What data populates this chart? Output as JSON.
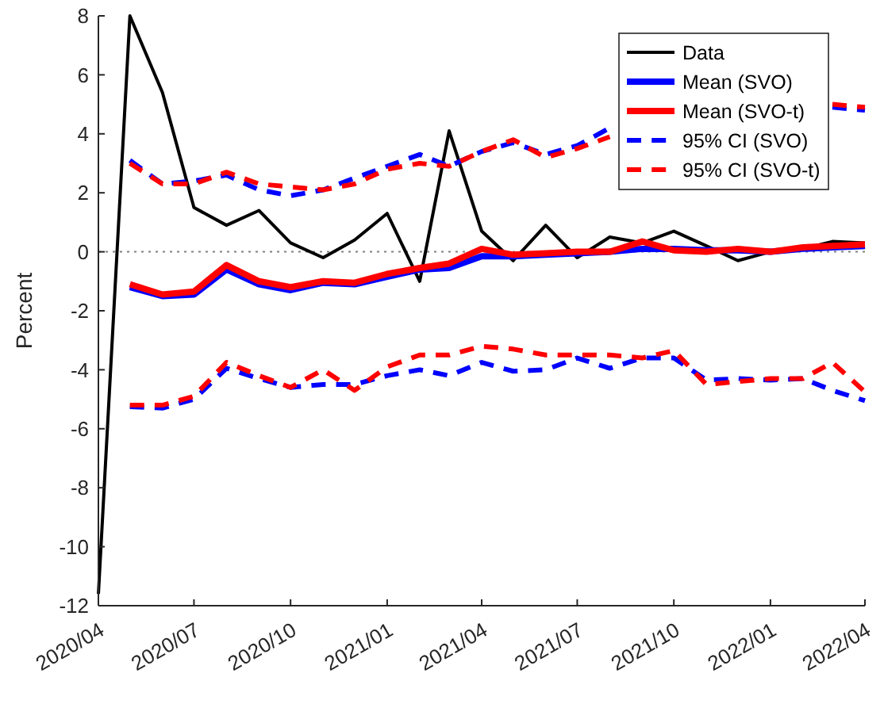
{
  "chart_data": {
    "type": "line",
    "ylabel": "Percent",
    "x": [
      "2020-04",
      "2020-05",
      "2020-06",
      "2020-07",
      "2020-08",
      "2020-09",
      "2020-10",
      "2020-11",
      "2020-12",
      "2021-01",
      "2021-02",
      "2021-03",
      "2021-04",
      "2021-05",
      "2021-06",
      "2021-07",
      "2021-08",
      "2021-09",
      "2021-10",
      "2021-11",
      "2021-12",
      "2022-01",
      "2022-02",
      "2022-03",
      "2022-04"
    ],
    "xlim": [
      "2020-04",
      "2022-04"
    ],
    "xticks": [
      {
        "value": "2020-04",
        "label": "2020/04"
      },
      {
        "value": "2020-07",
        "label": "2020/07"
      },
      {
        "value": "2020-10",
        "label": "2020/10"
      },
      {
        "value": "2021-01",
        "label": "2021/01"
      },
      {
        "value": "2021-04",
        "label": "2021/04"
      },
      {
        "value": "2021-07",
        "label": "2021/07"
      },
      {
        "value": "2021-10",
        "label": "2021/10"
      },
      {
        "value": "2022-01",
        "label": "2022/01"
      },
      {
        "value": "2022-04",
        "label": "2022/04"
      }
    ],
    "ylim": [
      -12,
      8
    ],
    "yticks": [
      -12,
      -10,
      -8,
      -6,
      -4,
      -2,
      0,
      2,
      4,
      6,
      8
    ],
    "grid": false,
    "legend": "top right",
    "marker": "none",
    "ref_lines": [
      {
        "axis": "y",
        "value": 0,
        "color": "#808080",
        "line_style": "dotted"
      }
    ],
    "series": [
      {
        "name": "Data",
        "color": "#000000",
        "line_style": "solid",
        "values": [
          -11.6,
          8.0,
          5.4,
          1.5,
          0.9,
          1.4,
          0.3,
          -0.2,
          0.4,
          1.3,
          -1.0,
          4.1,
          0.7,
          -0.3,
          0.9,
          -0.2,
          0.5,
          0.3,
          0.7,
          0.2,
          -0.3,
          0.0,
          0.1,
          0.35,
          0.3
        ]
      },
      {
        "name": "Mean (SVO)",
        "color": "#0000ff",
        "line_style": "solid",
        "values": [
          null,
          -1.2,
          -1.5,
          -1.45,
          -0.6,
          -1.1,
          -1.3,
          -1.05,
          -1.1,
          -0.85,
          -0.6,
          -0.55,
          -0.15,
          -0.15,
          -0.1,
          -0.05,
          0.0,
          0.1,
          0.1,
          0.05,
          0.05,
          0.0,
          0.1,
          0.15,
          0.2
        ]
      },
      {
        "name": "Mean (SVO-t)",
        "color": "#ff0000",
        "line_style": "solid",
        "values": [
          null,
          -1.1,
          -1.45,
          -1.35,
          -0.45,
          -1.0,
          -1.2,
          -1.0,
          -1.05,
          -0.75,
          -0.55,
          -0.4,
          0.1,
          -0.1,
          -0.05,
          0.0,
          0.0,
          0.35,
          0.05,
          0.0,
          0.1,
          0.0,
          0.15,
          0.2,
          0.25
        ]
      },
      {
        "name": "95% CI (SVO)",
        "color": "#0000ff",
        "line_style": "dashed",
        "values": [
          null,
          3.1,
          2.3,
          2.4,
          2.6,
          2.1,
          1.9,
          2.1,
          2.5,
          2.9,
          3.3,
          2.9,
          3.4,
          3.7,
          3.3,
          3.6,
          4.2,
          null,
          null,
          null,
          null,
          null,
          null,
          4.9,
          4.8
        ]
      },
      {
        "name": "95% CI (SVO-t)",
        "color": "#ff0000",
        "line_style": "dashed",
        "values": [
          null,
          3.0,
          2.3,
          2.3,
          2.7,
          2.3,
          2.2,
          2.1,
          2.3,
          2.8,
          3.0,
          2.9,
          3.4,
          3.8,
          3.2,
          3.5,
          3.9,
          null,
          null,
          null,
          null,
          null,
          null,
          5.0,
          4.9
        ]
      },
      {
        "color": "#0000ff",
        "line_style": "dashed",
        "values": [
          null,
          -5.25,
          -5.3,
          -5.0,
          -3.95,
          -4.3,
          -4.6,
          -4.5,
          -4.5,
          -4.2,
          -4.0,
          -4.2,
          -3.75,
          -4.05,
          -4.0,
          -3.6,
          -3.95,
          -3.6,
          -3.6,
          -4.35,
          -4.3,
          -4.35,
          -4.3,
          -4.7,
          -5.05
        ]
      },
      {
        "color": "#ff0000",
        "line_style": "dashed",
        "values": [
          null,
          -5.2,
          -5.2,
          -4.9,
          -3.75,
          -4.2,
          -4.6,
          -4.0,
          -4.7,
          -3.9,
          -3.5,
          -3.5,
          -3.2,
          -3.3,
          -3.5,
          -3.5,
          -3.5,
          -3.6,
          -3.35,
          -4.5,
          -4.4,
          -4.3,
          -4.3,
          -3.75,
          -4.75
        ]
      }
    ]
  }
}
